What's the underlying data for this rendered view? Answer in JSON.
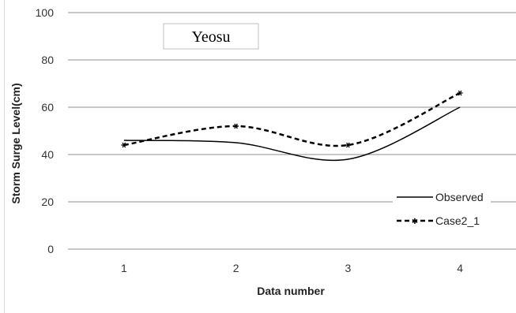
{
  "chart_data": {
    "type": "line",
    "title": "Yeosu",
    "xlabel": "Data number",
    "ylabel": "Storm Surge Level(cm)",
    "categories": [
      "1",
      "2",
      "3",
      "4"
    ],
    "x": [
      1,
      2,
      3,
      4
    ],
    "ylim": [
      0,
      100
    ],
    "yticks": [
      0,
      20,
      40,
      60,
      80,
      100
    ],
    "grid": true,
    "smooth": true,
    "legend_position": "bottom-right",
    "series": [
      {
        "name": "Observed",
        "values": [
          46,
          45,
          38,
          60
        ],
        "color": "#000000",
        "style": "solid",
        "marker": "none"
      },
      {
        "name": "Case2_1",
        "values": [
          44,
          52,
          44,
          66
        ],
        "color": "#000000",
        "style": "dashed",
        "marker": "star"
      }
    ]
  }
}
